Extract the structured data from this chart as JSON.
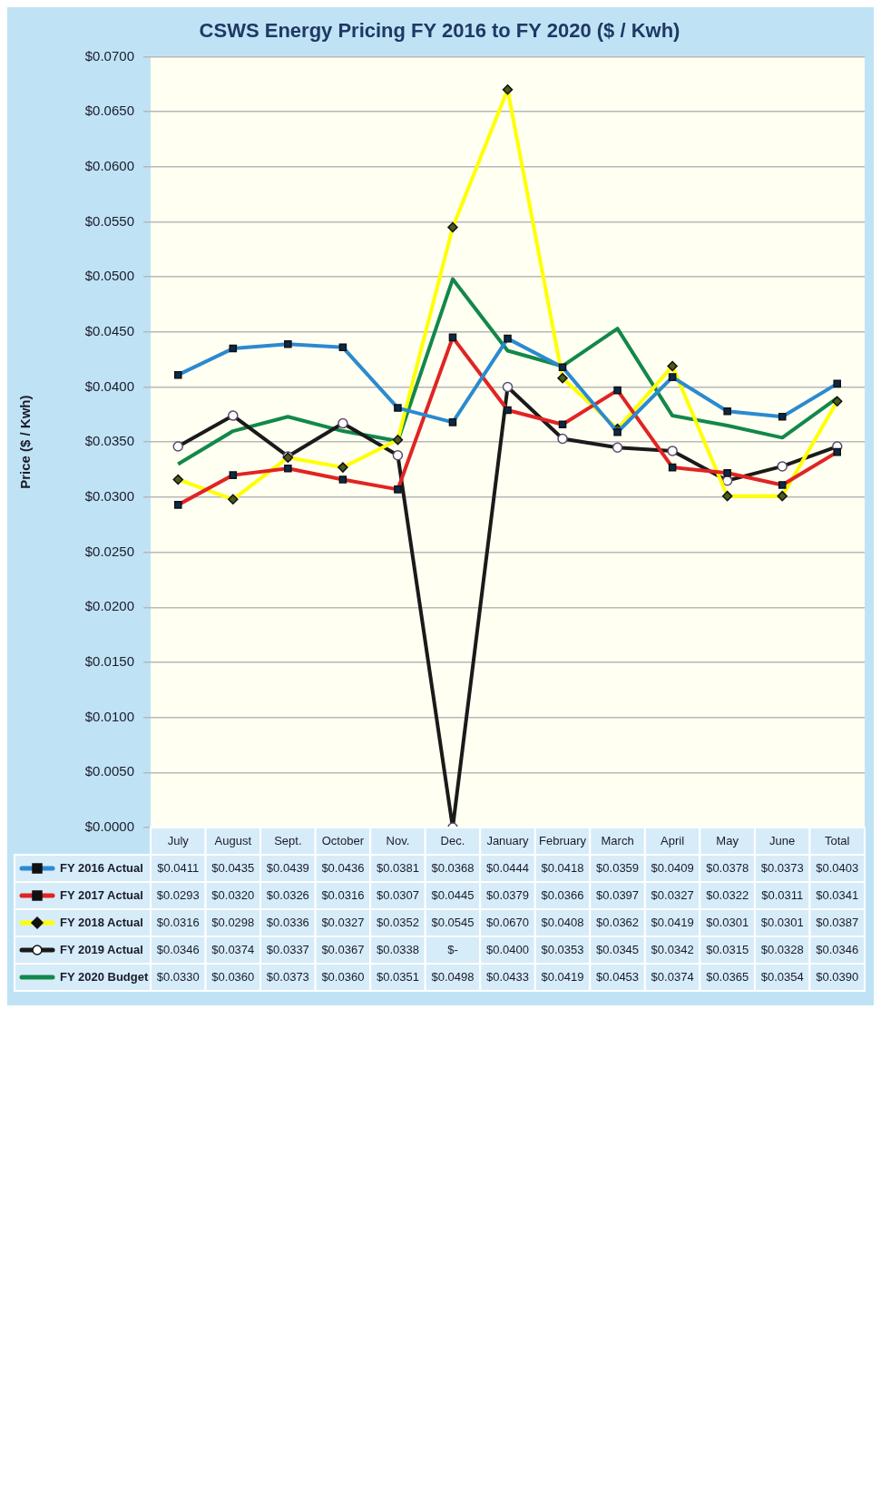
{
  "chart_data": {
    "type": "line",
    "title": "CSWS Energy Pricing FY 2016 to FY 2020 ($ / Kwh)",
    "ylabel": "Price ($ / Kwh)",
    "categories": [
      "July",
      "August",
      "Sept.",
      "October",
      "Nov.",
      "Dec.",
      "January",
      "February",
      "March",
      "April",
      "May",
      "June",
      "Total"
    ],
    "ylim": [
      0,
      0.07
    ],
    "yticks": [
      {
        "value": 0,
        "label": "$0.0000"
      },
      {
        "value": 0.005,
        "label": "$0.0050"
      },
      {
        "value": 0.01,
        "label": "$0.0100"
      },
      {
        "value": 0.015,
        "label": "$0.0150"
      },
      {
        "value": 0.02,
        "label": "$0.0200"
      },
      {
        "value": 0.025,
        "label": "$0.0250"
      },
      {
        "value": 0.03,
        "label": "$0.0300"
      },
      {
        "value": 0.035,
        "label": "$0.0350"
      },
      {
        "value": 0.04,
        "label": "$0.0400"
      },
      {
        "value": 0.045,
        "label": "$0.0450"
      },
      {
        "value": 0.05,
        "label": "$0.0500"
      },
      {
        "value": 0.055,
        "label": "$0.0550"
      },
      {
        "value": 0.06,
        "label": "$0.0600"
      },
      {
        "value": 0.065,
        "label": "$0.0650"
      },
      {
        "value": 0.07,
        "label": "$0.0700"
      }
    ],
    "grid": "y",
    "legend": "bottom",
    "series": [
      {
        "name": "FY 2016 Actual",
        "color": "#2b8ad0",
        "marker": "square",
        "values": [
          0.0411,
          0.0435,
          0.0439,
          0.0436,
          0.0381,
          0.0368,
          0.0444,
          0.0418,
          0.0359,
          0.0409,
          0.0378,
          0.0373,
          0.0403
        ],
        "value_labels": [
          "$0.0411",
          "$0.0435",
          "$0.0439",
          "$0.0436",
          "$0.0381",
          "$0.0368",
          "$0.0444",
          "$0.0418",
          "$0.0359",
          "$0.0409",
          "$0.0378",
          "$0.0373",
          "$0.0403"
        ]
      },
      {
        "name": "FY 2017 Actual",
        "color": "#e02424",
        "marker": "square",
        "values": [
          0.0293,
          0.032,
          0.0326,
          0.0316,
          0.0307,
          0.0445,
          0.0379,
          0.0366,
          0.0397,
          0.0327,
          0.0322,
          0.0311,
          0.0341
        ],
        "value_labels": [
          "$0.0293",
          "$0.0320",
          "$0.0326",
          "$0.0316",
          "$0.0307",
          "$0.0445",
          "$0.0379",
          "$0.0366",
          "$0.0397",
          "$0.0327",
          "$0.0322",
          "$0.0311",
          "$0.0341"
        ]
      },
      {
        "name": "FY 2018 Actual",
        "color": "#ffff00",
        "marker": "diamond",
        "values": [
          0.0316,
          0.0298,
          0.0336,
          0.0327,
          0.0352,
          0.0545,
          0.067,
          0.0408,
          0.0362,
          0.0419,
          0.0301,
          0.0301,
          0.0387
        ],
        "value_labels": [
          "$0.0316",
          "$0.0298",
          "$0.0336",
          "$0.0327",
          "$0.0352",
          "$0.0545",
          "$0.0670",
          "$0.0408",
          "$0.0362",
          "$0.0419",
          "$0.0301",
          "$0.0301",
          "$0.0387"
        ]
      },
      {
        "name": "FY 2019 Actual",
        "color": "#1a1a1a",
        "marker": "circle",
        "values": [
          0.0346,
          0.0374,
          0.0337,
          0.0367,
          0.0338,
          0,
          0.04,
          0.0353,
          0.0345,
          0.0342,
          0.0315,
          0.0328,
          0.0346
        ],
        "value_labels": [
          "$0.0346",
          "$0.0374",
          "$0.0337",
          "$0.0367",
          "$0.0338",
          "$-",
          "$0.0400",
          "$0.0353",
          "$0.0345",
          "$0.0342",
          "$0.0315",
          "$0.0328",
          "$0.0346"
        ]
      },
      {
        "name": "FY 2020 Budget",
        "color": "#12884a",
        "marker": "none",
        "values": [
          0.033,
          0.036,
          0.0373,
          0.036,
          0.0351,
          0.0498,
          0.0433,
          0.0419,
          0.0453,
          0.0374,
          0.0365,
          0.0354,
          0.039
        ],
        "value_labels": [
          "$0.0330",
          "$0.0360",
          "$0.0373",
          "$0.0360",
          "$0.0351",
          "$0.0498",
          "$0.0433",
          "$0.0419",
          "$0.0453",
          "$0.0374",
          "$0.0365",
          "$0.0354",
          "$0.0390"
        ]
      }
    ]
  }
}
